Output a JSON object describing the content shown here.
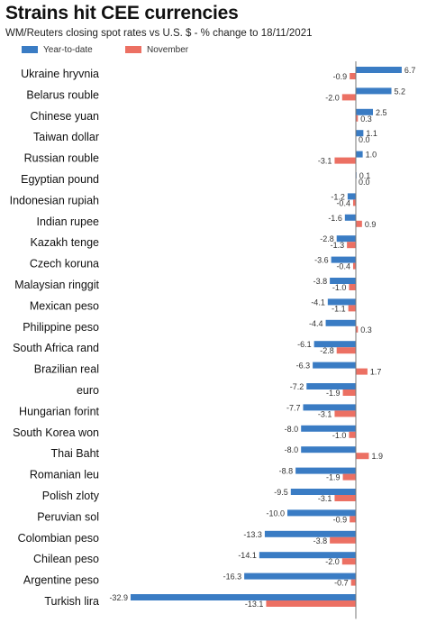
{
  "title": "Strains hit CEE currencies",
  "subtitle": "WM/Reuters closing spot rates vs U.S. $ - % change to 18/11/2021",
  "colors": {
    "ytd": "#3a7cc4",
    "nov": "#ec7063",
    "zero_line": "#777777"
  },
  "chart_data": {
    "type": "bar",
    "orientation": "horizontal",
    "categories": [
      "Ukraine hryvnia",
      "Belarus rouble",
      "Chinese yuan",
      "Taiwan dollar",
      "Russian rouble",
      "Egyptian pound",
      "Indonesian rupiah",
      "Indian rupee",
      "Kazakh tenge",
      "Czech koruna",
      "Malaysian ringgit",
      "Mexican peso",
      "Philippine peso",
      "South Africa rand",
      "Brazilian real",
      "euro",
      "Hungarian forint",
      "South Korea won",
      "Thai Baht",
      "Romanian leu",
      "Polish zloty",
      "Peruvian sol",
      "Colombian peso",
      "Chilean peso",
      "Argentine peso",
      "Turkish lira"
    ],
    "series": [
      {
        "name": "Year-to-date",
        "color": "#3a7cc4",
        "values": [
          6.7,
          5.2,
          2.5,
          1.1,
          1.0,
          0.1,
          -1.2,
          -1.6,
          -2.8,
          -3.6,
          -3.8,
          -4.1,
          -4.4,
          -6.1,
          -6.3,
          -7.2,
          -7.7,
          -8.0,
          -8.0,
          -8.8,
          -9.5,
          -10.0,
          -13.3,
          -14.1,
          -16.3,
          -32.9
        ],
        "labels": [
          "6.7",
          "5.2",
          "2.5",
          "1.1",
          "1.0",
          "0.1",
          "-1.2",
          "-1.6",
          "-2.8",
          "-3.6",
          "-3.8",
          "-4.1",
          "-4.4",
          "-6.1",
          "-6.3",
          "-7.2",
          "-7.7",
          "-8.0",
          "-8.0",
          "-8.8",
          "-9.5",
          "-10.0",
          "-13.3",
          "-14.1",
          "-16.3",
          "-32.9"
        ]
      },
      {
        "name": "November",
        "color": "#ec7063",
        "values": [
          -0.9,
          -2.0,
          0.3,
          0.0,
          -3.1,
          0.0,
          -0.4,
          0.9,
          -1.3,
          -0.4,
          -1.0,
          -1.1,
          0.3,
          -2.8,
          1.7,
          -1.9,
          -3.1,
          -1.0,
          1.9,
          -1.9,
          -3.1,
          -0.9,
          -3.8,
          -2.0,
          -0.7,
          -13.1
        ],
        "labels": [
          "-0.9",
          "-2.0",
          "0.3",
          "0.0",
          "-3.1",
          "0.0",
          "-0.4",
          "0.9",
          "-1.3",
          "-0.4",
          "-1.0",
          "-1.1",
          "0.3",
          "-2.8",
          "1.7",
          "-1.9",
          "-3.1",
          "-1.0",
          "1.9",
          "-1.9",
          "-3.1",
          "-0.9",
          "-3.8",
          "-2.0",
          "-0.7",
          "-13.1"
        ]
      }
    ],
    "xlim": [
      -32.9,
      6.7
    ],
    "grid": false,
    "legend_position": "top-left"
  }
}
